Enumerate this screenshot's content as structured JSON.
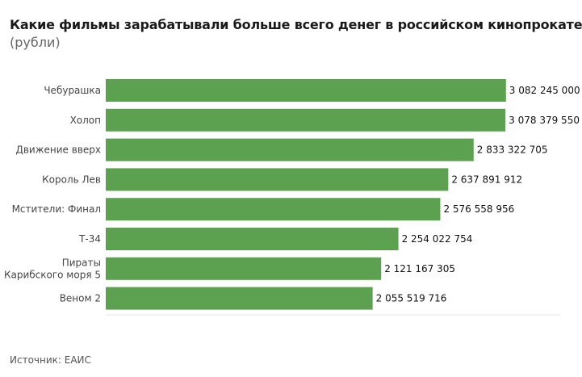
{
  "title": "Какие фильмы зарабатывали больше всего денег в российском кинопрокате",
  "subtitle": "(рубли)",
  "source": "Источник: ЕАИС",
  "colors": {
    "bar": "#5ba150",
    "axis": "#e6e6e6"
  },
  "chart_data": {
    "type": "bar",
    "orientation": "horizontal",
    "categories": [
      "Чебурашка",
      "Холоп",
      "Движение вверх",
      "Король Лев",
      "Мстители: Финал",
      "Т-34",
      "Пираты Карибского моря 5",
      "Веном 2"
    ],
    "category_lines": [
      [
        "Чебурашка"
      ],
      [
        "Холоп"
      ],
      [
        "Движение вверх"
      ],
      [
        "Король Лев"
      ],
      [
        "Мстители: Финал"
      ],
      [
        "Т-34"
      ],
      [
        "Пираты",
        "Карибского моря 5"
      ],
      [
        "Веном 2"
      ]
    ],
    "values": [
      3082245000,
      3078379550,
      2833322705,
      2637891912,
      2576558956,
      2254022754,
      2121167305,
      2055519716
    ],
    "value_labels": [
      "3 082 245 000",
      "3 078 379 550",
      "2 833 322 705",
      "2 637 891 912",
      "2 576 558 956",
      "2 254 022 754",
      "2 121 167 305",
      "2 055 519 716"
    ],
    "xlim": [
      0,
      3500000000
    ],
    "grid": false,
    "legend": "none"
  }
}
